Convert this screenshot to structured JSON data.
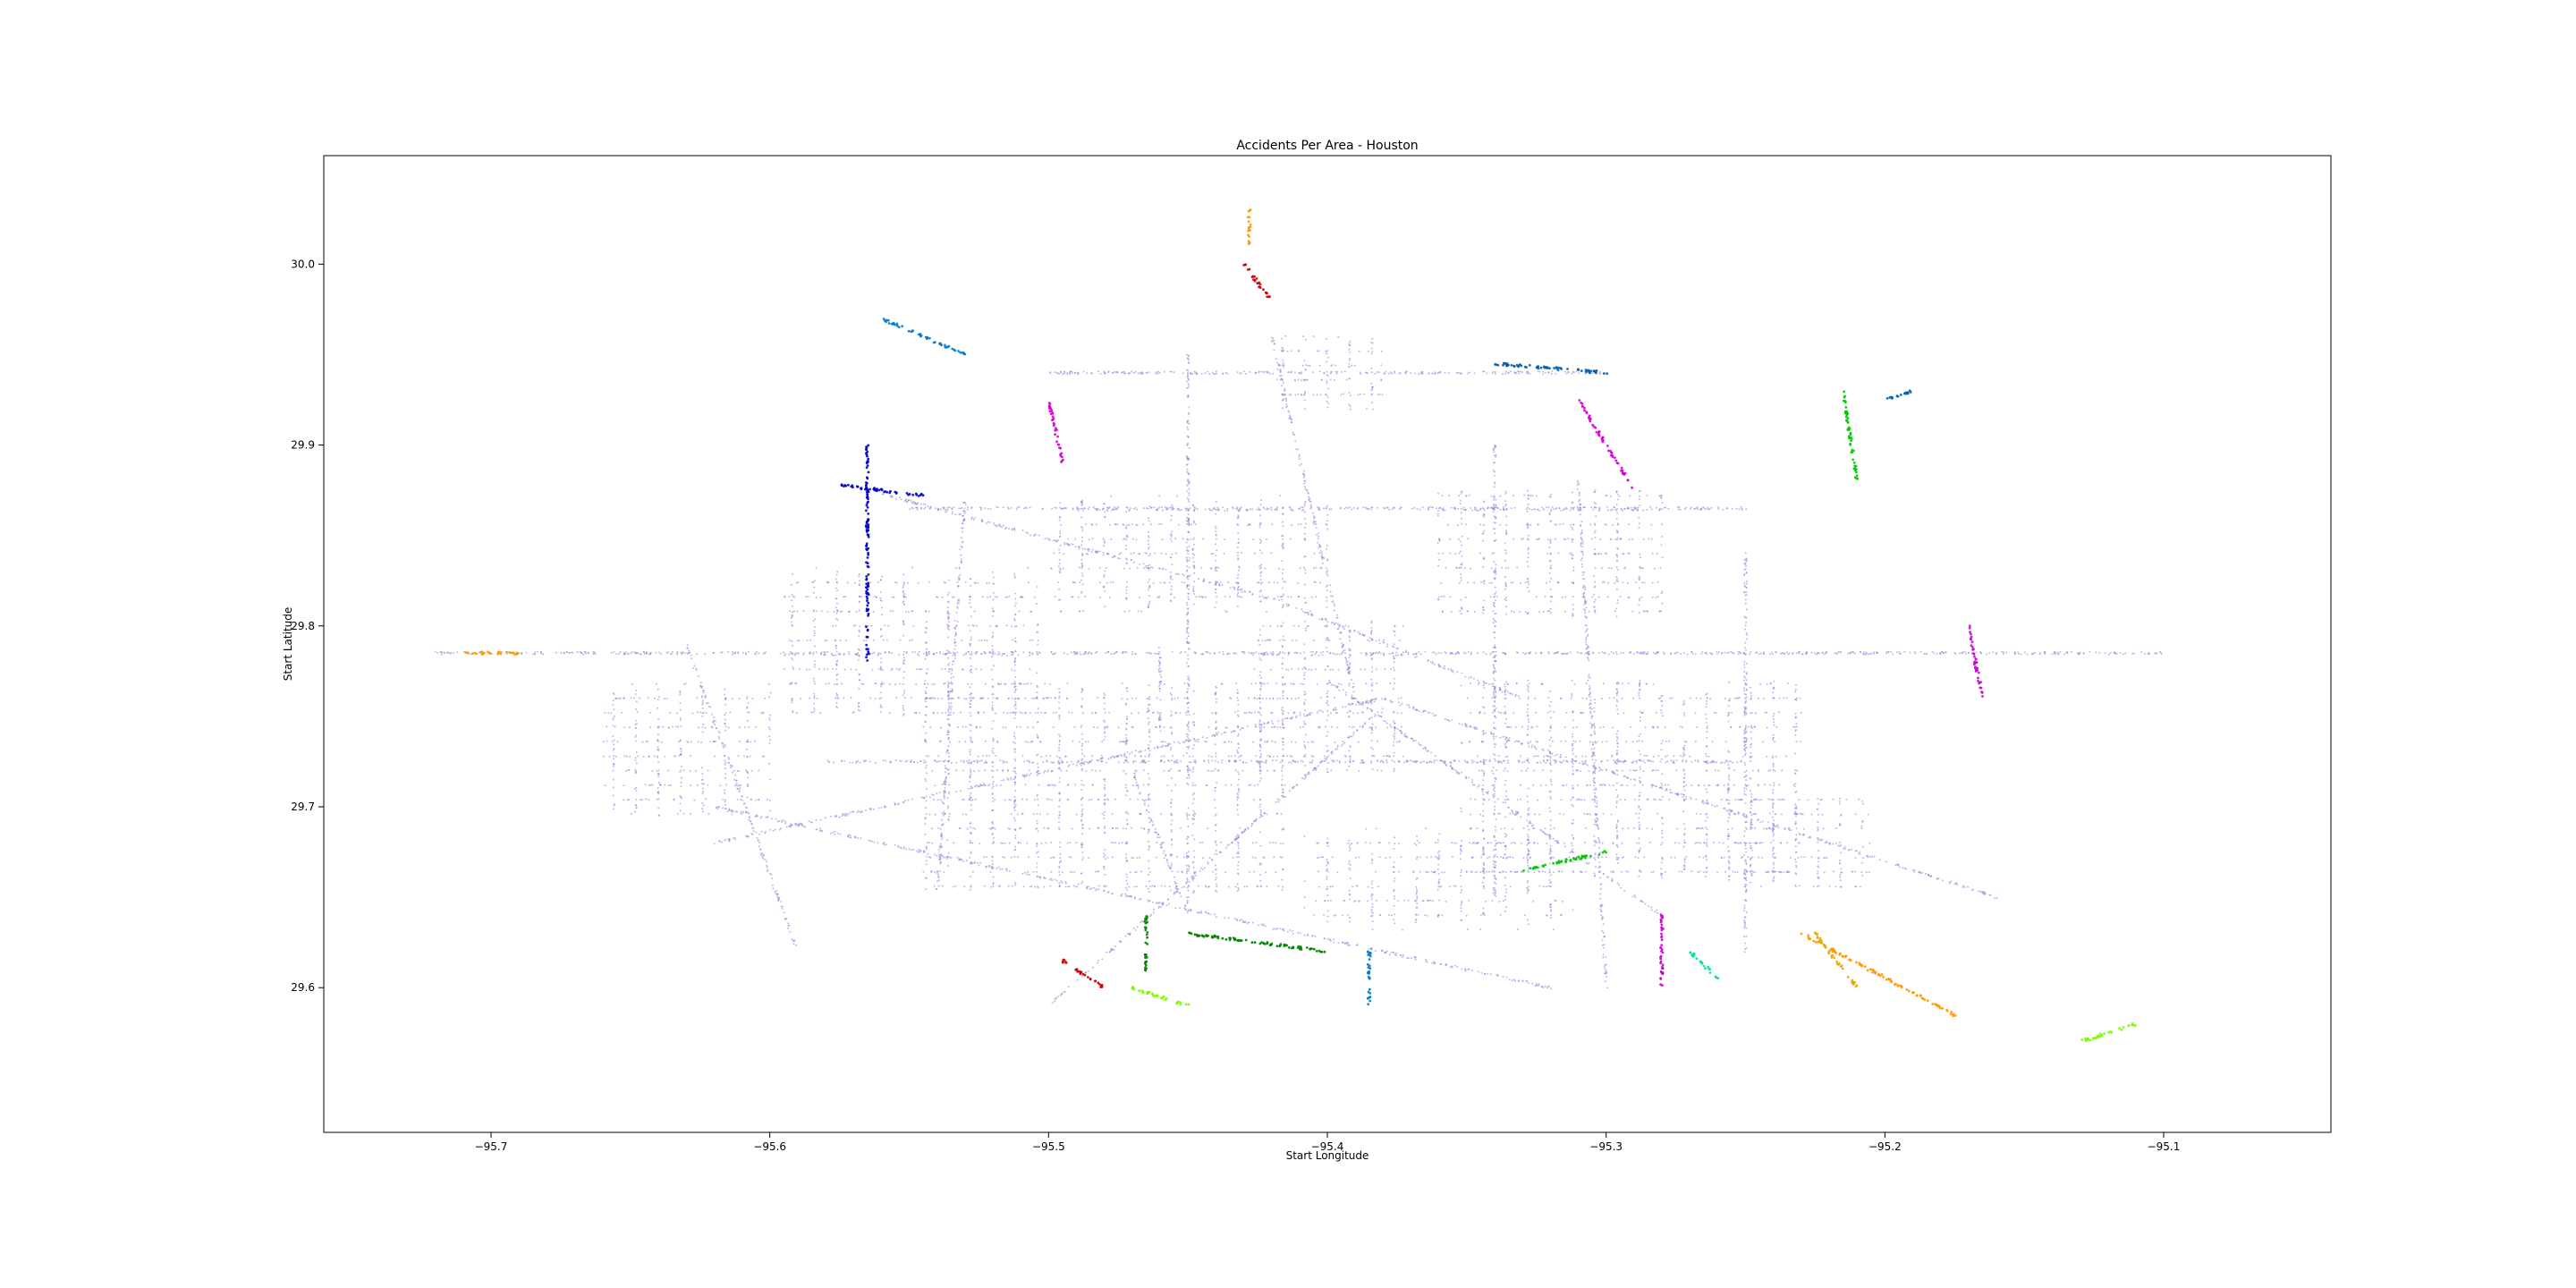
{
  "chart_data": {
    "type": "scatter",
    "title": "Accidents Per Area - Houston",
    "xlabel": "Start Longitude",
    "ylabel": "Start Latitude",
    "xlim": [
      -95.76,
      -95.04
    ],
    "ylim": [
      29.52,
      30.06
    ],
    "x_ticks": [
      -95.7,
      -95.6,
      -95.5,
      -95.4,
      -95.3,
      -95.2,
      -95.1
    ],
    "x_tick_labels": [
      "−95.7",
      "−95.6",
      "−95.5",
      "−95.4",
      "−95.3",
      "−95.2",
      "−95.1"
    ],
    "y_ticks": [
      29.6,
      29.7,
      29.8,
      29.9,
      30.0
    ],
    "y_tick_labels": [
      "29.6",
      "29.7",
      "29.8",
      "29.9",
      "30.0"
    ],
    "grid": false,
    "legend": "none",
    "colors": {
      "base": "#8a84d6",
      "clusters": [
        "#0000cd",
        "#d400d4",
        "#00c800",
        "#ff9900",
        "#007acc",
        "#c80000",
        "#00e0a0",
        "#7cfc00",
        "#008000",
        "#cc00cc",
        "#e6a800",
        "#005faa"
      ]
    },
    "series": [
      {
        "color": "#8a84d6",
        "segments": [
          [
            -95.72,
            29.785,
            -95.1,
            29.785
          ],
          [
            -95.58,
            29.725,
            -95.25,
            29.725
          ],
          [
            -95.55,
            29.865,
            -95.25,
            29.865
          ],
          [
            -95.5,
            29.94,
            -95.3,
            29.94
          ],
          [
            -95.56,
            29.873,
            -95.42,
            29.815
          ],
          [
            -95.42,
            29.815,
            -95.33,
            29.76
          ],
          [
            -95.4,
            29.77,
            -95.28,
            29.64
          ],
          [
            -95.38,
            29.755,
            -95.5,
            29.59
          ],
          [
            -95.38,
            29.76,
            -95.16,
            29.65
          ],
          [
            -95.38,
            29.76,
            -95.62,
            29.68
          ],
          [
            -95.42,
            29.96,
            -95.39,
            29.76
          ],
          [
            -95.45,
            29.95,
            -95.45,
            29.64
          ],
          [
            -95.31,
            29.88,
            -95.3,
            29.6
          ],
          [
            -95.53,
            29.87,
            -95.54,
            29.65
          ],
          [
            -95.34,
            29.9,
            -95.34,
            29.65
          ],
          [
            -95.63,
            29.79,
            -95.59,
            29.62
          ],
          [
            -95.25,
            29.84,
            -95.25,
            29.62
          ],
          [
            -95.62,
            29.7,
            -95.32,
            29.6
          ],
          [
            -95.46,
            29.79,
            -95.46,
            29.74
          ],
          [
            -95.47,
            29.72,
            -95.45,
            29.64
          ]
        ]
      },
      {
        "color": "#8a84d6",
        "clusters": [
          [
            -95.4,
            29.76,
            0.055,
            0.085
          ],
          [
            -95.48,
            29.71,
            0.13,
            0.115
          ],
          [
            -95.29,
            29.715,
            0.12,
            0.11
          ],
          [
            -95.55,
            29.79,
            0.09,
            0.08
          ],
          [
            -95.36,
            29.66,
            0.09,
            0.05
          ],
          [
            -95.45,
            29.84,
            0.1,
            0.06
          ],
          [
            -95.32,
            29.84,
            0.08,
            0.07
          ],
          [
            -95.63,
            29.73,
            0.06,
            0.07
          ],
          [
            -95.4,
            29.94,
            0.04,
            0.04
          ],
          [
            -95.23,
            29.68,
            0.05,
            0.05
          ]
        ]
      },
      {
        "color": "#0000cd",
        "segments": [
          [
            -95.565,
            29.9,
            -95.565,
            29.78
          ],
          [
            -95.575,
            29.878,
            -95.545,
            29.872
          ]
        ]
      },
      {
        "color": "#d400d4",
        "segments": [
          [
            -95.5,
            29.925,
            -95.495,
            29.89
          ],
          [
            -95.31,
            29.925,
            -95.29,
            29.875
          ]
        ]
      },
      {
        "color": "#00c800",
        "segments": [
          [
            -95.33,
            29.665,
            -95.3,
            29.675
          ],
          [
            -95.215,
            29.93,
            -95.21,
            29.88
          ]
        ]
      },
      {
        "color": "#ff9900",
        "segments": [
          [
            -95.23,
            29.63,
            -95.175,
            29.585
          ],
          [
            -95.71,
            29.785,
            -95.69,
            29.785
          ],
          [
            -95.428,
            30.03,
            -95.428,
            30.01
          ]
        ]
      },
      {
        "color": "#007acc",
        "segments": [
          [
            -95.56,
            29.97,
            -95.53,
            29.95
          ],
          [
            -95.385,
            29.62,
            -95.385,
            29.59
          ]
        ]
      },
      {
        "color": "#c80000",
        "segments": [
          [
            -95.495,
            29.615,
            -95.48,
            29.6
          ],
          [
            -95.43,
            30.0,
            -95.42,
            29.98
          ]
        ]
      },
      {
        "color": "#00e0a0",
        "segments": [
          [
            -95.27,
            29.62,
            -95.26,
            29.605
          ]
        ]
      },
      {
        "color": "#7cfc00",
        "segments": [
          [
            -95.13,
            29.57,
            -95.11,
            29.58
          ],
          [
            -95.47,
            29.6,
            -95.45,
            29.59
          ]
        ]
      },
      {
        "color": "#008000",
        "segments": [
          [
            -95.465,
            29.64,
            -95.465,
            29.61
          ],
          [
            -95.45,
            29.63,
            -95.4,
            29.62
          ]
        ]
      },
      {
        "color": "#cc00cc",
        "segments": [
          [
            -95.28,
            29.64,
            -95.28,
            29.6
          ],
          [
            -95.17,
            29.8,
            -95.165,
            29.76
          ]
        ]
      },
      {
        "color": "#e6a800",
        "segments": [
          [
            -95.225,
            29.63,
            -95.21,
            29.6
          ]
        ]
      },
      {
        "color": "#005faa",
        "segments": [
          [
            -95.34,
            29.945,
            -95.3,
            29.94
          ],
          [
            -95.2,
            29.925,
            -95.19,
            29.93
          ]
        ]
      }
    ]
  }
}
